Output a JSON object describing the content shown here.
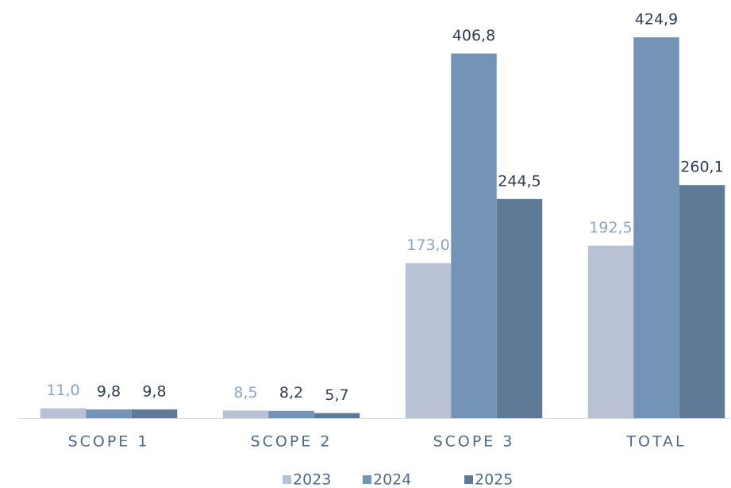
{
  "chart_data": {
    "type": "bar",
    "categories": [
      "SCOPE 1",
      "SCOPE 2",
      "SCOPE 3",
      "TOTAL"
    ],
    "series": [
      {
        "name": "2023",
        "color": "#b8c2d4",
        "values": [
          11.0,
          8.5,
          173.0,
          192.5
        ],
        "value_labels": [
          "11,0",
          "8,5",
          "173,0",
          "192,5"
        ]
      },
      {
        "name": "2024",
        "color": "#7393b7",
        "values": [
          9.8,
          8.2,
          406.8,
          424.9
        ],
        "value_labels": [
          "9,8",
          "8,2",
          "406,8",
          "424,9"
        ]
      },
      {
        "name": "2025",
        "color": "#5f7a96",
        "values": [
          9.8,
          5.7,
          244.5,
          260.1
        ],
        "value_labels": [
          "9,8",
          "5,7",
          "244,5",
          "260,1"
        ]
      }
    ],
    "legend": "bottom"
  }
}
